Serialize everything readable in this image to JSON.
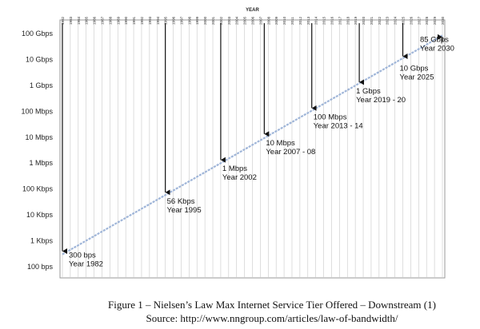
{
  "chart_data": {
    "type": "line",
    "title": "YEAR",
    "x_start": 1982,
    "x_end": 2030,
    "y_levels": [
      "100 bps",
      "1 Kbps",
      "10 Kbps",
      "100 Kbps",
      "1 Mbps",
      "10 Mbps",
      "100 Mbps",
      "1 Gbps",
      "10 Gbps",
      "100 Gbps"
    ],
    "series": [
      {
        "name": "Max Internet Service Tier Offered",
        "x": [
          1982,
          2030
        ],
        "log10_bps": [
          2.477,
          10.929
        ]
      }
    ],
    "annotations": [
      {
        "year": 1982,
        "log10_bps": 2.477,
        "speed": "300 bps",
        "label": "Year 1982"
      },
      {
        "year": 1995,
        "log10_bps": 4.748,
        "speed": "56 Kbps",
        "label": "Year 1995"
      },
      {
        "year": 2002,
        "log10_bps": 6.0,
        "speed": "1 Mbps",
        "label": "Year 2002"
      },
      {
        "year": 2007.5,
        "log10_bps": 7.0,
        "speed": "10 Mbps",
        "label": "Year 2007 - 08"
      },
      {
        "year": 2013.5,
        "log10_bps": 8.0,
        "speed": "100 Mbps",
        "label": "Year 2013 - 14"
      },
      {
        "year": 2019.5,
        "log10_bps": 9.0,
        "speed": "1 Gbps",
        "label": "Year 2019 - 20"
      },
      {
        "year": 2025,
        "log10_bps": 10.0,
        "speed": "10 Gbps",
        "label": "Year 2025"
      },
      {
        "year": 2030,
        "log10_bps": 10.929,
        "speed": "85 Gbps",
        "label": "Year 2030"
      }
    ],
    "colors": {
      "line": "#9fb5d8",
      "grid": "#c8c8c8",
      "arrow": "#111111"
    }
  },
  "caption": {
    "line1": "Figure 1 – Nielsen’s Law Max Internet Service Tier Offered – Downstream (1)",
    "line2": "Source: http://www.nngroup.com/articles/law-of-bandwidth/"
  }
}
